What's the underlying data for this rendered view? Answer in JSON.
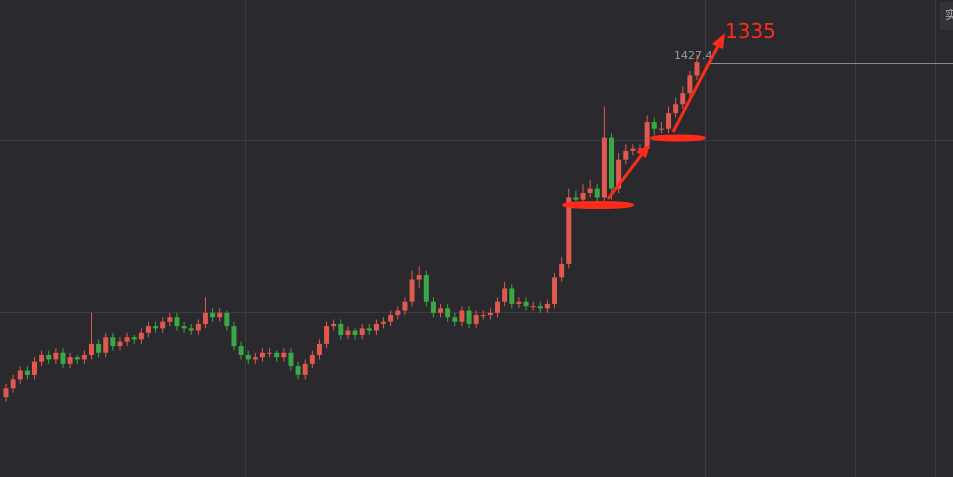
{
  "chart_data": {
    "type": "candlestick",
    "ylim": [
      1237,
      1452
    ],
    "up_color": "#e0584e",
    "down_color": "#3aa845",
    "high_label_color": "#9a9aa0",
    "annotation": "1335",
    "corner_button": "实",
    "ohlc": [
      [
        1273,
        1279,
        1271,
        1277
      ],
      [
        1277,
        1283,
        1275,
        1281
      ],
      [
        1281,
        1287,
        1279,
        1285
      ],
      [
        1285,
        1287,
        1281,
        1283
      ],
      [
        1283,
        1291,
        1281,
        1289
      ],
      [
        1289,
        1294,
        1287,
        1292
      ],
      [
        1292,
        1294,
        1288,
        1290
      ],
      [
        1290,
        1295,
        1288,
        1293
      ],
      [
        1293,
        1295,
        1286,
        1288
      ],
      [
        1288,
        1293,
        1286,
        1291
      ],
      [
        1291,
        1292,
        1288,
        1290
      ],
      [
        1290,
        1294,
        1288,
        1292
      ],
      [
        1292,
        1311,
        1290,
        1297
      ],
      [
        1297,
        1299,
        1291,
        1293
      ],
      [
        1293,
        1302,
        1291,
        1300
      ],
      [
        1300,
        1302,
        1294,
        1296
      ],
      [
        1296,
        1300,
        1294,
        1298
      ],
      [
        1298,
        1302,
        1296,
        1300
      ],
      [
        1300,
        1301,
        1297,
        1299
      ],
      [
        1299,
        1304,
        1297,
        1302
      ],
      [
        1302,
        1307,
        1300,
        1305
      ],
      [
        1305,
        1307,
        1302,
        1304
      ],
      [
        1304,
        1309,
        1302,
        1307
      ],
      [
        1307,
        1311,
        1305,
        1309
      ],
      [
        1309,
        1311,
        1303,
        1305
      ],
      [
        1305,
        1307,
        1302,
        1304
      ],
      [
        1304,
        1306,
        1301,
        1303
      ],
      [
        1303,
        1308,
        1301,
        1306
      ],
      [
        1306,
        1318,
        1304,
        1311
      ],
      [
        1311,
        1313,
        1307,
        1309
      ],
      [
        1309,
        1313,
        1307,
        1311
      ],
      [
        1311,
        1312,
        1303,
        1305
      ],
      [
        1305,
        1307,
        1294,
        1296
      ],
      [
        1296,
        1298,
        1290,
        1292
      ],
      [
        1292,
        1294,
        1288,
        1290
      ],
      [
        1290,
        1293,
        1288,
        1291
      ],
      [
        1291,
        1295,
        1289,
        1293
      ],
      [
        1293,
        1295,
        1291,
        1293
      ],
      [
        1293,
        1294,
        1289,
        1291
      ],
      [
        1291,
        1295,
        1289,
        1293
      ],
      [
        1293,
        1295,
        1285,
        1287
      ],
      [
        1287,
        1289,
        1281,
        1283
      ],
      [
        1283,
        1290,
        1281,
        1288
      ],
      [
        1288,
        1294,
        1286,
        1292
      ],
      [
        1292,
        1299,
        1290,
        1297
      ],
      [
        1297,
        1307,
        1295,
        1305
      ],
      [
        1305,
        1308,
        1303,
        1306
      ],
      [
        1306,
        1308,
        1299,
        1301
      ],
      [
        1301,
        1305,
        1299,
        1303
      ],
      [
        1303,
        1304,
        1299,
        1301
      ],
      [
        1301,
        1306,
        1299,
        1304
      ],
      [
        1304,
        1306,
        1301,
        1303
      ],
      [
        1303,
        1308,
        1301,
        1306
      ],
      [
        1306,
        1309,
        1304,
        1307
      ],
      [
        1307,
        1312,
        1305,
        1310
      ],
      [
        1310,
        1314,
        1308,
        1312
      ],
      [
        1312,
        1318,
        1310,
        1316
      ],
      [
        1316,
        1330,
        1314,
        1326
      ],
      [
        1326,
        1332,
        1322,
        1328
      ],
      [
        1328,
        1330,
        1314,
        1316
      ],
      [
        1316,
        1318,
        1309,
        1311
      ],
      [
        1311,
        1315,
        1309,
        1313
      ],
      [
        1313,
        1315,
        1307,
        1309
      ],
      [
        1309,
        1311,
        1305,
        1307
      ],
      [
        1307,
        1314,
        1305,
        1312
      ],
      [
        1312,
        1314,
        1304,
        1306
      ],
      [
        1306,
        1312,
        1304,
        1310
      ],
      [
        1310,
        1312,
        1308,
        1310
      ],
      [
        1310,
        1313,
        1308,
        1311
      ],
      [
        1311,
        1318,
        1309,
        1316
      ],
      [
        1316,
        1325,
        1314,
        1322
      ],
      [
        1322,
        1324,
        1313,
        1315
      ],
      [
        1315,
        1318,
        1313,
        1316
      ],
      [
        1316,
        1318,
        1312,
        1314
      ],
      [
        1314,
        1316,
        1312,
        1314
      ],
      [
        1314,
        1316,
        1311,
        1313
      ],
      [
        1313,
        1317,
        1311,
        1315
      ],
      [
        1315,
        1329,
        1313,
        1327
      ],
      [
        1327,
        1336,
        1325,
        1333
      ],
      [
        1333,
        1367,
        1331,
        1363
      ],
      [
        1363,
        1366,
        1359,
        1362
      ],
      [
        1362,
        1369,
        1360,
        1365
      ],
      [
        1365,
        1371,
        1363,
        1367
      ],
      [
        1367,
        1369,
        1361,
        1363
      ],
      [
        1363,
        1404,
        1361,
        1390
      ],
      [
        1390,
        1392,
        1362,
        1367
      ],
      [
        1367,
        1383,
        1365,
        1380
      ],
      [
        1380,
        1387,
        1378,
        1384
      ],
      [
        1384,
        1387,
        1382,
        1385
      ],
      [
        1385,
        1387,
        1383,
        1385
      ],
      [
        1385,
        1400,
        1383,
        1397
      ],
      [
        1397,
        1399,
        1391,
        1394
      ],
      [
        1394,
        1397,
        1392,
        1394
      ],
      [
        1394,
        1404,
        1392,
        1401
      ],
      [
        1401,
        1408,
        1399,
        1405
      ],
      [
        1405,
        1413,
        1403,
        1410
      ],
      [
        1410,
        1420,
        1408,
        1418
      ],
      [
        1418,
        1427.4,
        1416,
        1424
      ]
    ]
  }
}
